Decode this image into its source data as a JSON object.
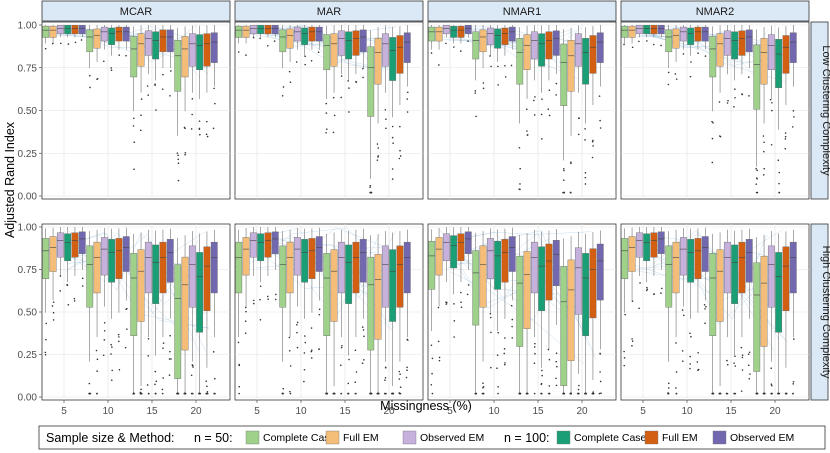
{
  "chart_data": {
    "type": "box",
    "y_label": "Adjusted Rand Index",
    "x_label": "Missingness (%)",
    "ylim": [
      0,
      1
    ],
    "y_ticks": [
      "0.00",
      "0.25",
      "0.50",
      "0.75",
      "1.00"
    ],
    "y_tick_values": [
      0,
      0.25,
      0.5,
      0.75,
      1
    ],
    "x_ticks": [
      "5",
      "10",
      "15",
      "20"
    ],
    "column_facets": [
      "MCAR",
      "MAR",
      "NMAR1",
      "NMAR2"
    ],
    "row_facets": [
      "Low Clustering Complexity",
      "High Clustering Complexity"
    ],
    "legend": {
      "title": "Sample size & Method:",
      "groups": [
        {
          "label": "n = 50:",
          "entries": [
            {
              "name": "Complete Case",
              "color": "#9fd18a"
            },
            {
              "name": "Full EM",
              "color": "#f4bd78"
            },
            {
              "name": "Observed EM",
              "color": "#c6b0dc"
            }
          ]
        },
        {
          "label": "n = 100:",
          "entries": [
            {
              "name": "Complete Case",
              "color": "#199e76"
            },
            {
              "name": "Full EM",
              "color": "#d25f12"
            },
            {
              "name": "Observed EM",
              "color": "#7168b0"
            }
          ]
        }
      ]
    },
    "series_order": [
      "n50 Complete Case",
      "n50 Full EM",
      "n50 Observed EM",
      "n100 Complete Case",
      "n100 Full EM",
      "n100 Observed EM"
    ],
    "medians": {
      "Low Clustering Complexity": {
        "MCAR": [
          [
            0.97,
            0.97,
            0.98,
            0.98,
            0.98,
            0.98
          ],
          [
            0.93,
            0.94,
            0.96,
            0.95,
            0.96,
            0.96
          ],
          [
            0.86,
            0.89,
            0.92,
            0.91,
            0.93,
            0.93
          ],
          [
            0.82,
            0.86,
            0.89,
            0.88,
            0.89,
            0.9
          ]
        ],
        "MAR": [
          [
            0.97,
            0.97,
            0.98,
            0.98,
            0.98,
            0.98
          ],
          [
            0.93,
            0.94,
            0.96,
            0.95,
            0.96,
            0.96
          ],
          [
            0.88,
            0.89,
            0.92,
            0.91,
            0.92,
            0.93
          ],
          [
            0.75,
            0.84,
            0.89,
            0.85,
            0.87,
            0.9
          ]
        ],
        "NMAR1": [
          [
            0.96,
            0.96,
            0.98,
            0.97,
            0.97,
            0.98
          ],
          [
            0.91,
            0.93,
            0.95,
            0.94,
            0.95,
            0.96
          ],
          [
            0.84,
            0.88,
            0.91,
            0.89,
            0.91,
            0.92
          ],
          [
            0.78,
            0.82,
            0.89,
            0.84,
            0.87,
            0.9
          ]
        ],
        "NMAR2": [
          [
            0.97,
            0.97,
            0.98,
            0.98,
            0.98,
            0.98
          ],
          [
            0.93,
            0.94,
            0.96,
            0.95,
            0.96,
            0.96
          ],
          [
            0.86,
            0.89,
            0.92,
            0.91,
            0.92,
            0.93
          ],
          [
            0.77,
            0.84,
            0.88,
            0.83,
            0.87,
            0.9
          ]
        ]
      },
      "High Clustering Complexity": {
        "MCAR": [
          [
            0.86,
            0.88,
            0.92,
            0.91,
            0.92,
            0.93
          ],
          [
            0.78,
            0.82,
            0.87,
            0.85,
            0.86,
            0.88
          ],
          [
            0.7,
            0.74,
            0.82,
            0.79,
            0.82,
            0.85
          ],
          [
            0.58,
            0.66,
            0.78,
            0.71,
            0.77,
            0.82
          ]
        ],
        "MAR": [
          [
            0.82,
            0.87,
            0.92,
            0.91,
            0.92,
            0.93
          ],
          [
            0.78,
            0.82,
            0.87,
            0.85,
            0.86,
            0.88
          ],
          [
            0.7,
            0.74,
            0.82,
            0.79,
            0.82,
            0.85
          ],
          [
            0.66,
            0.69,
            0.78,
            0.74,
            0.78,
            0.82
          ]
        ],
        "NMAR1": [
          [
            0.83,
            0.87,
            0.91,
            0.89,
            0.91,
            0.93
          ],
          [
            0.73,
            0.78,
            0.86,
            0.83,
            0.85,
            0.88
          ],
          [
            0.67,
            0.72,
            0.82,
            0.77,
            0.8,
            0.84
          ],
          [
            0.56,
            0.63,
            0.76,
            0.7,
            0.75,
            0.8
          ]
        ],
        "NMAR2": [
          [
            0.86,
            0.88,
            0.92,
            0.91,
            0.92,
            0.93
          ],
          [
            0.78,
            0.82,
            0.87,
            0.85,
            0.86,
            0.88
          ],
          [
            0.7,
            0.74,
            0.82,
            0.79,
            0.82,
            0.85
          ],
          [
            0.6,
            0.67,
            0.78,
            0.71,
            0.77,
            0.82
          ]
        ]
      }
    }
  }
}
